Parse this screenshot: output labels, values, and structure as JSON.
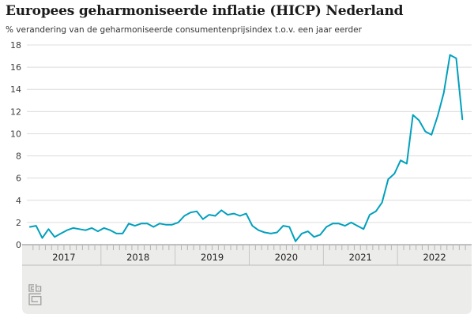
{
  "title": "Europees geharmoniseerde inflatie (HICP) Nederland",
  "subtitle": "% verandering van de geharmoniseerde consumentenprijsindex t.o.v. een jaar eerder",
  "logo_name": "cbs-logo",
  "colors": {
    "line": "#00a0bd",
    "panel": "#ececea",
    "gridline": "#dcdcdc",
    "zero_axis": "#8a8a8a",
    "tick": "#b3b3b3",
    "year_separator": "#c6c6c6",
    "band_divider": "#bdbdbd",
    "label_text": "#3c3c3c",
    "year_text": "#222222",
    "title_text": "#1b1b1b",
    "logo_stroke": "#9c9c9c"
  },
  "chart_data": {
    "type": "line",
    "title": "Europees geharmoniseerde inflatie (HICP) Nederland",
    "subtitle": "% verandering van de geharmoniseerde consumentenprijsindex t.o.v. een jaar eerder",
    "xlabel": "",
    "ylabel": "",
    "ylim": [
      0,
      18
    ],
    "y_ticks": [
      0,
      2,
      4,
      6,
      8,
      10,
      12,
      14,
      16,
      18
    ],
    "x_years": [
      "2017",
      "2018",
      "2019",
      "2020",
      "2021",
      "2022"
    ],
    "x_start": "2017-01",
    "x_end": "2022-11",
    "x_frequency": "monthly",
    "grid": "horizontal",
    "legend": "none",
    "series": [
      {
        "name": "HICP Nederland, % verandering t.o.v. een jaar eerder",
        "values": [
          1.6,
          1.7,
          0.6,
          1.4,
          0.7,
          1.0,
          1.3,
          1.5,
          1.4,
          1.3,
          1.5,
          1.2,
          1.5,
          1.3,
          1.0,
          1.0,
          1.9,
          1.7,
          1.9,
          1.9,
          1.6,
          1.9,
          1.8,
          1.8,
          2.0,
          2.6,
          2.9,
          3.0,
          2.3,
          2.7,
          2.6,
          3.1,
          2.7,
          2.8,
          2.6,
          2.8,
          1.7,
          1.3,
          1.1,
          1.0,
          1.1,
          1.7,
          1.6,
          0.3,
          1.0,
          1.2,
          0.7,
          0.9,
          1.6,
          1.9,
          1.9,
          1.7,
          2.0,
          1.7,
          1.4,
          2.7,
          3.0,
          3.8,
          5.9,
          6.4,
          7.6,
          7.3,
          11.7,
          11.2,
          10.2,
          9.9,
          11.6,
          13.7,
          17.1,
          16.8,
          11.3
        ]
      }
    ]
  }
}
